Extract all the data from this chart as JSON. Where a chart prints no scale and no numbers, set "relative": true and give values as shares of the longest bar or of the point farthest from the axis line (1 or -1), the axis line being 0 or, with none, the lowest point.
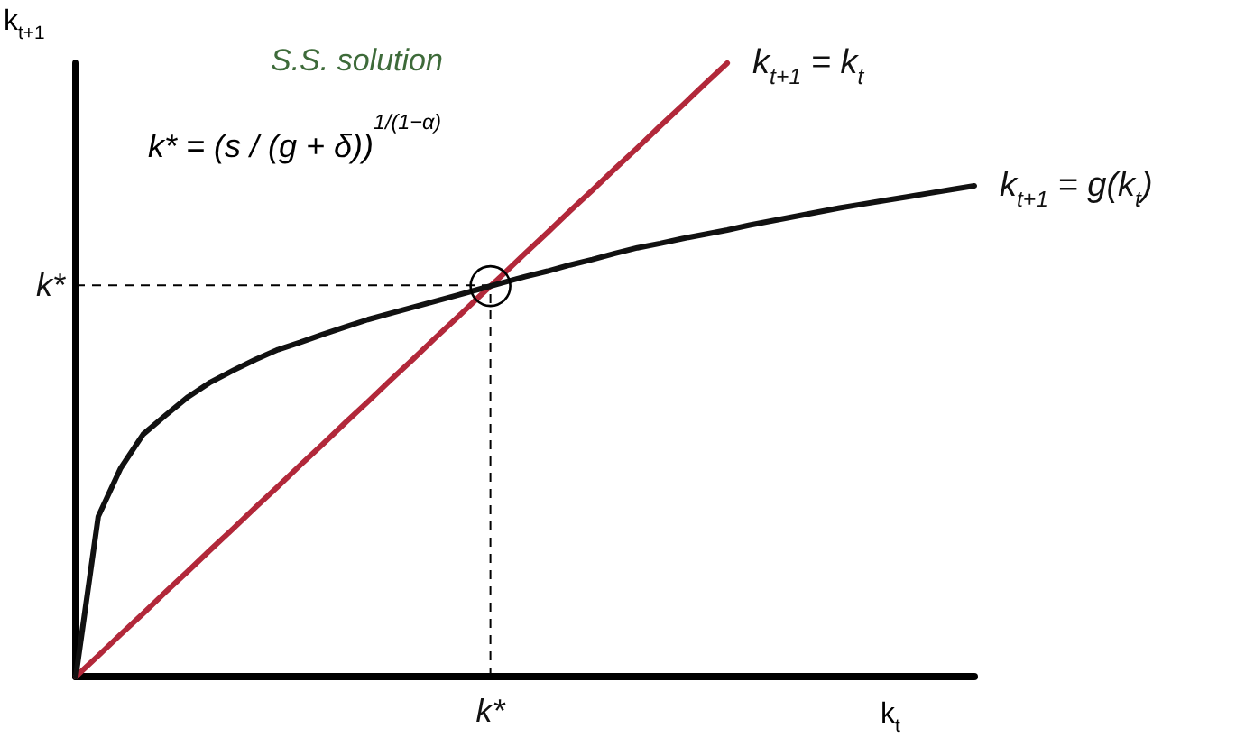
{
  "chart_data": {
    "type": "line",
    "relative": true,
    "xlabel": "k$_{t}$",
    "ylabel": "k$_{t+1}$",
    "title": "S.S. solution",
    "grid": false,
    "legend": false,
    "marker": "none",
    "line_style": "solid",
    "categories": [
      null,
      null,
      null,
      null,
      null,
      null,
      null,
      null,
      null,
      null,
      null,
      null,
      null,
      null,
      null,
      null,
      null,
      null,
      null,
      null,
      null,
      null,
      null,
      null,
      null,
      null,
      null,
      null,
      null,
      null,
      null,
      null,
      null,
      null,
      null,
      null,
      null,
      null,
      null,
      null,
      null
    ],
    "ref_lines": [
      {
        "axis": "y",
        "value": 0.638,
        "label": "k*",
        "line_style": "dashed",
        "color": "#000000"
      }
    ],
    "annotations": [
      "k* = (s / (g + δ))$^{1/(1−α)}$",
      "k*"
    ],
    "series": [
      {
        "name": "k$_{t+1}$ = k$_{t}$",
        "color": "#b2283a",
        "values": [
          0,
          0.034,
          0.069,
          0.103,
          0.138,
          0.172,
          0.207,
          0.241,
          0.276,
          0.31,
          0.345,
          0.379,
          0.414,
          0.448,
          0.483,
          0.517,
          0.552,
          0.586,
          0.621,
          0.655,
          0.69,
          0.724,
          0.759,
          0.793,
          0.828,
          0.862,
          0.897,
          0.931,
          0.966,
          1,
          null,
          null,
          null,
          null,
          null,
          null,
          null,
          null,
          null,
          null,
          null
        ]
      },
      {
        "name": "k$_{t+1}$ = g(k$_{t}$)",
        "color": "#111111",
        "values": [
          0,
          0.261,
          0.34,
          0.395,
          0.426,
          0.456,
          0.48,
          0.499,
          0.517,
          0.533,
          0.545,
          0.558,
          0.57,
          0.582,
          0.592,
          0.602,
          0.612,
          0.622,
          0.632,
          0.642,
          0.652,
          0.661,
          0.671,
          0.68,
          0.69,
          0.699,
          0.706,
          0.714,
          0.721,
          0.728,
          0.736,
          0.743,
          0.75,
          0.757,
          0.764,
          0.77,
          0.776,
          0.782,
          0.788,
          0.794,
          0.8
        ]
      }
    ]
  }
}
